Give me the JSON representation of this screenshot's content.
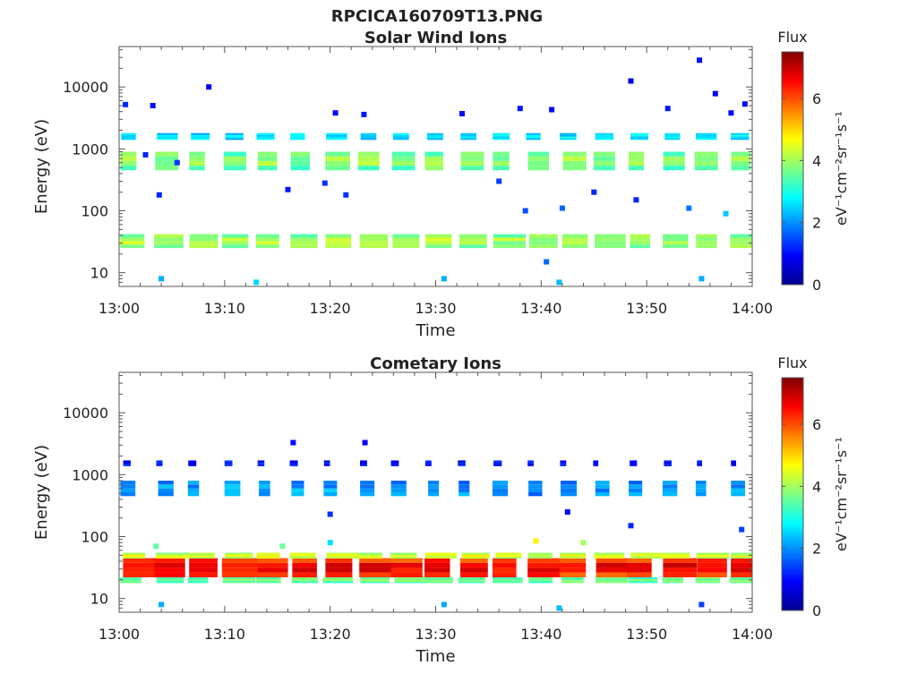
{
  "figure": {
    "title": "RPCICA160709T13.PNG"
  },
  "colormap": {
    "name": "jet",
    "stops": [
      "#00008f",
      "#0000ff",
      "#0080ff",
      "#00ffff",
      "#80ff80",
      "#ffff00",
      "#ff8000",
      "#ff0000",
      "#800000"
    ]
  },
  "chart_data": [
    {
      "type": "heatmap",
      "title": "Solar Wind Ions",
      "xlabel": "Time",
      "ylabel": "Energy (eV)",
      "x_ticks": [
        "13:00",
        "13:10",
        "13:20",
        "13:30",
        "13:40",
        "13:50",
        "14:00"
      ],
      "x_range_min": [
        0,
        60
      ],
      "y_scale": "log",
      "y_ticks": [
        "10",
        "100",
        "1000",
        "10000"
      ],
      "ylim": [
        6,
        45000
      ],
      "colorbar": {
        "label_top": "Flux",
        "label": "eV⁻¹cm⁻²sr⁻¹s⁻¹",
        "ticks": [
          "0",
          "2",
          "4",
          "6"
        ],
        "range": [
          0,
          7.5
        ]
      },
      "scan_period_min": 3.2,
      "blocks": [
        {
          "energy_lo": 25,
          "energy_hi": 42,
          "flux": 3.8,
          "width_min": 2.4
        },
        {
          "energy_lo": 450,
          "energy_hi": 900,
          "flux": 3.6,
          "width_min": 1.8
        },
        {
          "energy_lo": 1400,
          "energy_hi": 1800,
          "flux": 2.5,
          "width_min": 1.6
        }
      ],
      "scatter": [
        {
          "t": 0.6,
          "e": 5200,
          "f": 1.2
        },
        {
          "t": 3.2,
          "e": 5000,
          "f": 1.0
        },
        {
          "t": 8.5,
          "e": 10000,
          "f": 0.8
        },
        {
          "t": 20.5,
          "e": 3800,
          "f": 0.9
        },
        {
          "t": 23.2,
          "e": 3600,
          "f": 1.1
        },
        {
          "t": 32.5,
          "e": 3700,
          "f": 1.0
        },
        {
          "t": 38.0,
          "e": 4500,
          "f": 1.1
        },
        {
          "t": 41.0,
          "e": 4300,
          "f": 1.0
        },
        {
          "t": 48.5,
          "e": 12500,
          "f": 0.7
        },
        {
          "t": 55.0,
          "e": 27000,
          "f": 1.0
        },
        {
          "t": 56.5,
          "e": 7800,
          "f": 0.9
        },
        {
          "t": 59.3,
          "e": 5300,
          "f": 1.0
        },
        {
          "t": 52.0,
          "e": 4500,
          "f": 1.1
        },
        {
          "t": 58.0,
          "e": 3800,
          "f": 1.0
        },
        {
          "t": 2.5,
          "e": 800,
          "f": 1.2
        },
        {
          "t": 5.5,
          "e": 600,
          "f": 1.3
        },
        {
          "t": 3.8,
          "e": 180,
          "f": 1.2
        },
        {
          "t": 16.0,
          "e": 220,
          "f": 1.1
        },
        {
          "t": 19.5,
          "e": 280,
          "f": 1.3
        },
        {
          "t": 21.5,
          "e": 180,
          "f": 1.3
        },
        {
          "t": 38.5,
          "e": 100,
          "f": 1.5
        },
        {
          "t": 42.0,
          "e": 110,
          "f": 1.7
        },
        {
          "t": 54.0,
          "e": 110,
          "f": 1.8
        },
        {
          "t": 57.5,
          "e": 90,
          "f": 2.4
        },
        {
          "t": 4.0,
          "e": 8,
          "f": 2.2
        },
        {
          "t": 13.0,
          "e": 7,
          "f": 2.5
        },
        {
          "t": 30.8,
          "e": 8,
          "f": 2.2
        },
        {
          "t": 40.5,
          "e": 15,
          "f": 1.7
        },
        {
          "t": 41.7,
          "e": 7,
          "f": 2.3
        },
        {
          "t": 55.2,
          "e": 8,
          "f": 2.2
        },
        {
          "t": 36.0,
          "e": 300,
          "f": 1.4
        },
        {
          "t": 45.0,
          "e": 200,
          "f": 1.2
        },
        {
          "t": 49.0,
          "e": 150,
          "f": 1.2
        }
      ]
    },
    {
      "type": "heatmap",
      "title": "Cometary Ions",
      "xlabel": "Time",
      "ylabel": "Energy (eV)",
      "x_ticks": [
        "13:00",
        "13:10",
        "13:20",
        "13:30",
        "13:40",
        "13:50",
        "14:00"
      ],
      "x_range_min": [
        0,
        60
      ],
      "y_scale": "log",
      "y_ticks": [
        "10",
        "100",
        "1000",
        "10000"
      ],
      "ylim": [
        6,
        45000
      ],
      "colorbar": {
        "label_top": "Flux",
        "label": "eV⁻¹cm⁻²sr⁻¹s⁻¹",
        "ticks": [
          "0",
          "2",
          "4",
          "6"
        ],
        "range": [
          0,
          7.5
        ]
      },
      "scan_period_min": 3.2,
      "blocks": [
        {
          "energy_lo": 18,
          "energy_hi": 22,
          "flux": 3.5,
          "width_min": 2.4
        },
        {
          "energy_lo": 22,
          "energy_hi": 45,
          "flux": 6.2,
          "width_min": 2.8
        },
        {
          "energy_lo": 45,
          "energy_hi": 55,
          "flux": 4.2,
          "width_min": 2.6
        },
        {
          "energy_lo": 450,
          "energy_hi": 800,
          "flux": 2.0,
          "width_min": 1.2
        },
        {
          "energy_lo": 1400,
          "energy_hi": 1700,
          "flux": 1.0,
          "width_min": 0.6
        }
      ],
      "scatter": [
        {
          "t": 16.5,
          "e": 3300,
          "f": 1.0
        },
        {
          "t": 23.3,
          "e": 3300,
          "f": 0.9
        },
        {
          "t": 20.0,
          "e": 230,
          "f": 1.3
        },
        {
          "t": 20.0,
          "e": 80,
          "f": 2.6
        },
        {
          "t": 39.5,
          "e": 85,
          "f": 4.8
        },
        {
          "t": 48.5,
          "e": 150,
          "f": 1.2
        },
        {
          "t": 59.0,
          "e": 130,
          "f": 1.4
        },
        {
          "t": 4.0,
          "e": 8,
          "f": 2.2
        },
        {
          "t": 30.8,
          "e": 8,
          "f": 2.2
        },
        {
          "t": 41.7,
          "e": 7,
          "f": 2.3
        },
        {
          "t": 55.2,
          "e": 8,
          "f": 1.4
        },
        {
          "t": 42.5,
          "e": 250,
          "f": 1.0
        },
        {
          "t": 3.5,
          "e": 70,
          "f": 3.5
        },
        {
          "t": 15.5,
          "e": 70,
          "f": 3.6
        },
        {
          "t": 44.0,
          "e": 80,
          "f": 4.0
        }
      ]
    }
  ]
}
